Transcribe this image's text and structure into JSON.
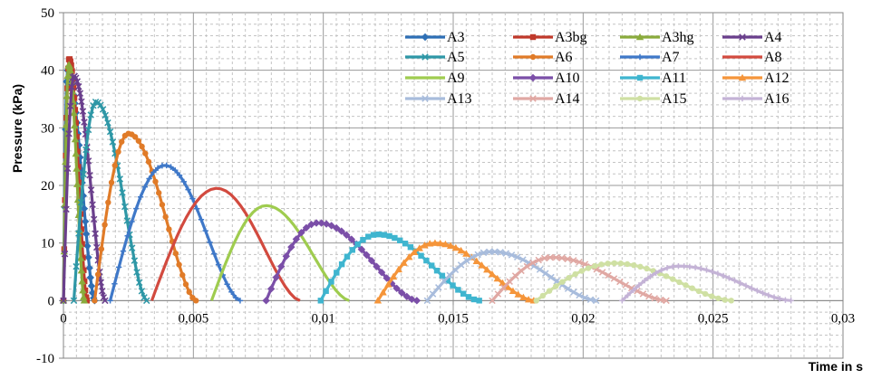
{
  "chart_data": {
    "type": "line",
    "xlabel": "Time in s",
    "ylabel": "Pressure (kPa)",
    "xlim": [
      0,
      0.03
    ],
    "ylim": [
      -10,
      50
    ],
    "x_ticks": [
      "0",
      "0,005",
      "0,01",
      "0,015",
      "0,02",
      "0,025",
      "0,03"
    ],
    "y_ticks": [
      "-10",
      "0",
      "10",
      "20",
      "30",
      "40",
      "50"
    ],
    "grid": true,
    "legend_placement": "top-right",
    "series": [
      {
        "name": "A3",
        "color": "#2e6fb5",
        "marker": "diamond",
        "start": 0.0,
        "peak_t": 0.00015,
        "peak": 40,
        "end": 0.0012
      },
      {
        "name": "A3bg",
        "color": "#c0392b",
        "marker": "square",
        "start": 0.0,
        "peak_t": 0.00022,
        "peak": 42,
        "end": 0.0009
      },
      {
        "name": "A3hg",
        "color": "#8aab3c",
        "marker": "triangle",
        "start": 0.0,
        "peak_t": 0.0002,
        "peak": 41,
        "end": 0.0008
      },
      {
        "name": "A4",
        "color": "#6a3f8c",
        "marker": "x",
        "start": 0.0,
        "peak_t": 0.0004,
        "peak": 39,
        "end": 0.0016
      },
      {
        "name": "A5",
        "color": "#2e97a6",
        "marker": "x",
        "start": 0.0004,
        "peak_t": 0.00125,
        "peak": 34.5,
        "end": 0.0032
      },
      {
        "name": "A6",
        "color": "#e07b28",
        "marker": "circle",
        "start": 0.0012,
        "peak_t": 0.0025,
        "peak": 29,
        "end": 0.0051
      },
      {
        "name": "A7",
        "color": "#3f78c8",
        "marker": "plus",
        "start": 0.0018,
        "peak_t": 0.0039,
        "peak": 23.5,
        "end": 0.0068
      },
      {
        "name": "A8",
        "color": "#d24a3f",
        "marker": "line",
        "start": 0.0034,
        "peak_t": 0.0059,
        "peak": 19.5,
        "end": 0.0091
      },
      {
        "name": "A9",
        "color": "#9fcc4f",
        "marker": "line",
        "start": 0.0057,
        "peak_t": 0.0078,
        "peak": 16.5,
        "end": 0.011
      },
      {
        "name": "A10",
        "color": "#7b4fa8",
        "marker": "diamond",
        "start": 0.0078,
        "peak_t": 0.0098,
        "peak": 13.5,
        "end": 0.0136
      },
      {
        "name": "A11",
        "color": "#3fb5cf",
        "marker": "square",
        "start": 0.0099,
        "peak_t": 0.0121,
        "peak": 11.5,
        "end": 0.016
      },
      {
        "name": "A12",
        "color": "#f5953a",
        "marker": "triangle",
        "start": 0.0121,
        "peak_t": 0.0143,
        "peak": 10,
        "end": 0.0181
      },
      {
        "name": "A13",
        "color": "#a8bcdc",
        "marker": "x",
        "start": 0.014,
        "peak_t": 0.0165,
        "peak": 8.5,
        "end": 0.0205
      },
      {
        "name": "A14",
        "color": "#e0a8a3",
        "marker": "x",
        "start": 0.0165,
        "peak_t": 0.0188,
        "peak": 7.5,
        "end": 0.0232
      },
      {
        "name": "A15",
        "color": "#cfe0a3",
        "marker": "circle",
        "start": 0.0182,
        "peak_t": 0.0212,
        "peak": 6.5,
        "end": 0.0257
      },
      {
        "name": "A16",
        "color": "#c4b3d6",
        "marker": "plus",
        "start": 0.0215,
        "peak_t": 0.0237,
        "peak": 6,
        "end": 0.028
      }
    ]
  }
}
